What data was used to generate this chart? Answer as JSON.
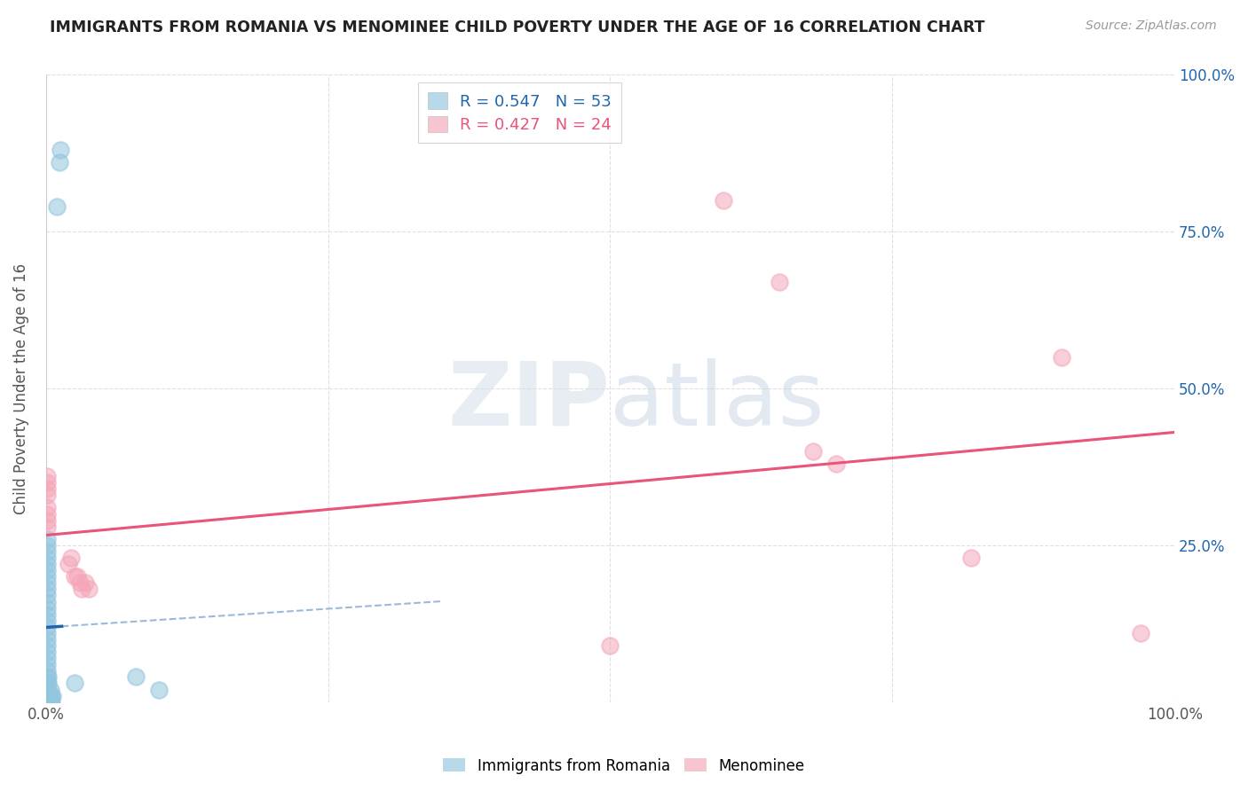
{
  "title": "IMMIGRANTS FROM ROMANIA VS MENOMINEE CHILD POVERTY UNDER THE AGE OF 16 CORRELATION CHART",
  "source": "Source: ZipAtlas.com",
  "ylabel": "Child Poverty Under the Age of 16",
  "legend_label1": "Immigrants from Romania",
  "legend_label2": "Menominee",
  "romania_R": "0.547",
  "romania_N": "53",
  "menominee_R": "0.427",
  "menominee_N": "24",
  "romania_color": "#92c5de",
  "menominee_color": "#f4a6b8",
  "romania_line_color": "#2166ac",
  "menominee_line_color": "#e8547a",
  "romania_scatter": [
    [
      0.001,
      0.0
    ],
    [
      0.001,
      0.0
    ],
    [
      0.001,
      0.0
    ],
    [
      0.001,
      0.0
    ],
    [
      0.001,
      0.0
    ],
    [
      0.001,
      0.01
    ],
    [
      0.001,
      0.01
    ],
    [
      0.001,
      0.01
    ],
    [
      0.001,
      0.02
    ],
    [
      0.001,
      0.02
    ],
    [
      0.001,
      0.03
    ],
    [
      0.001,
      0.03
    ],
    [
      0.001,
      0.04
    ],
    [
      0.001,
      0.05
    ],
    [
      0.001,
      0.06
    ],
    [
      0.001,
      0.07
    ],
    [
      0.001,
      0.08
    ],
    [
      0.001,
      0.09
    ],
    [
      0.001,
      0.1
    ],
    [
      0.001,
      0.11
    ],
    [
      0.001,
      0.12
    ],
    [
      0.001,
      0.13
    ],
    [
      0.001,
      0.14
    ],
    [
      0.001,
      0.15
    ],
    [
      0.001,
      0.16
    ],
    [
      0.001,
      0.17
    ],
    [
      0.001,
      0.18
    ],
    [
      0.001,
      0.19
    ],
    [
      0.001,
      0.2
    ],
    [
      0.001,
      0.21
    ],
    [
      0.001,
      0.22
    ],
    [
      0.001,
      0.23
    ],
    [
      0.001,
      0.24
    ],
    [
      0.001,
      0.25
    ],
    [
      0.001,
      0.26
    ],
    [
      0.002,
      0.0
    ],
    [
      0.002,
      0.01
    ],
    [
      0.002,
      0.02
    ],
    [
      0.002,
      0.03
    ],
    [
      0.002,
      0.04
    ],
    [
      0.003,
      0.0
    ],
    [
      0.003,
      0.01
    ],
    [
      0.004,
      0.0
    ],
    [
      0.004,
      0.02
    ],
    [
      0.005,
      0.0
    ],
    [
      0.005,
      0.01
    ],
    [
      0.006,
      0.01
    ],
    [
      0.01,
      0.79
    ],
    [
      0.012,
      0.86
    ],
    [
      0.013,
      0.88
    ],
    [
      0.025,
      0.03
    ],
    [
      0.08,
      0.04
    ],
    [
      0.1,
      0.02
    ]
  ],
  "menominee_scatter": [
    [
      0.001,
      0.28
    ],
    [
      0.001,
      0.29
    ],
    [
      0.001,
      0.3
    ],
    [
      0.001,
      0.31
    ],
    [
      0.001,
      0.33
    ],
    [
      0.001,
      0.34
    ],
    [
      0.001,
      0.35
    ],
    [
      0.001,
      0.36
    ],
    [
      0.02,
      0.22
    ],
    [
      0.022,
      0.23
    ],
    [
      0.025,
      0.2
    ],
    [
      0.028,
      0.2
    ],
    [
      0.03,
      0.19
    ],
    [
      0.032,
      0.18
    ],
    [
      0.035,
      0.19
    ],
    [
      0.038,
      0.18
    ],
    [
      0.5,
      0.09
    ],
    [
      0.6,
      0.8
    ],
    [
      0.65,
      0.67
    ],
    [
      0.68,
      0.4
    ],
    [
      0.7,
      0.38
    ],
    [
      0.82,
      0.23
    ],
    [
      0.9,
      0.55
    ],
    [
      0.97,
      0.11
    ]
  ],
  "xlim": [
    0.0,
    1.0
  ],
  "ylim": [
    0.0,
    1.0
  ],
  "watermark": "ZIPatlas",
  "background_color": "#ffffff",
  "grid_color": "#e0e0e0"
}
